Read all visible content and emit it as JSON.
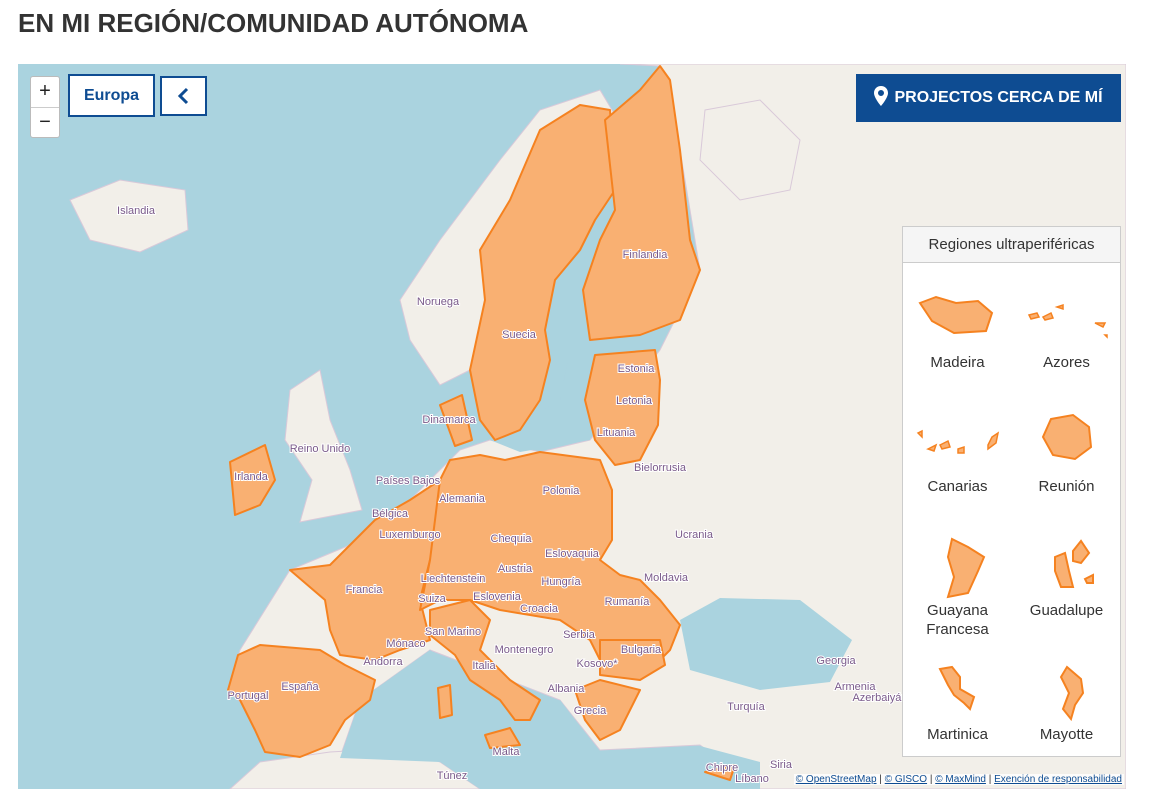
{
  "header": {
    "title": "EN MI REGIÓN/COMUNIDAD AUTÓNOMA"
  },
  "map_controls": {
    "zoom_in": "+",
    "zoom_out": "−",
    "region_button": "Europa"
  },
  "nearby_button": "PROJECTOS CERCA DE MÍ",
  "legend": {
    "title": "Regiones ultraperiféricas",
    "items": [
      "Madeira",
      "Azores",
      "Canarias",
      "Reunión",
      "Guayana Francesa",
      "Guadalupe",
      "Martinica",
      "Mayotte"
    ]
  },
  "map_labels": [
    "Islandia",
    "Noruega",
    "Suecia",
    "Finlandia",
    "Estonia",
    "Letonia",
    "Lituania",
    "Dinamarca",
    "Reino Unido",
    "Irlanda",
    "Países Bajos",
    "Bélgica",
    "Luxemburgo",
    "Alemania",
    "Polonia",
    "Bielorrusia",
    "Chequia",
    "Eslovaquia",
    "Ucrania",
    "Austria",
    "Hungría",
    "Moldavia",
    "Liechtenstein",
    "Suiza",
    "Eslovenia",
    "Francia",
    "Rumanía",
    "Croacia",
    "San Marino",
    "Mónaco",
    "Serbia",
    "Andorra",
    "Montenegro",
    "Bulgaria",
    "Kosovo*",
    "Italia",
    "Georgia",
    "España",
    "Portugal",
    "Albania",
    "Armenia",
    "Azerbaiyán",
    "Turquía",
    "Grecia",
    "Malta",
    "Siria",
    "Chipre",
    "Túnez",
    "Líbano"
  ],
  "attribution": {
    "links": [
      "© OpenStreetMap",
      "© GISCO",
      "© MaxMind",
      "Exención de responsabilidad"
    ],
    "separator": "|"
  }
}
